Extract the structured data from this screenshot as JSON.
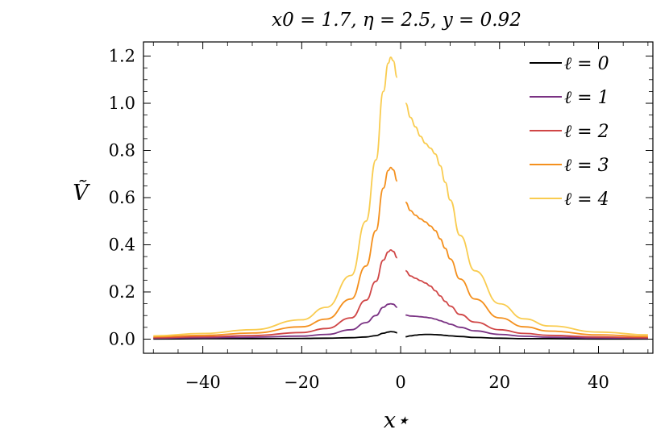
{
  "chart_data": {
    "type": "line",
    "title": "x0 = 1.7, η = 2.5, y = 0.92",
    "xlabel": "x⋆",
    "ylabel": "Ṽ",
    "xlim": [
      -52,
      51
    ],
    "ylim": [
      -0.06,
      1.26
    ],
    "grid": false,
    "legend_position": "top-right",
    "x_ticks": [
      -40,
      -20,
      0,
      20,
      40
    ],
    "x_tick_labels": [
      "−40",
      "−20",
      "0",
      "20",
      "40"
    ],
    "y_ticks": [
      0.0,
      0.2,
      0.4,
      0.6,
      0.8,
      1.0,
      1.2
    ],
    "y_tick_labels": [
      "0.0",
      "0.2",
      "0.4",
      "0.6",
      "0.8",
      "1.0",
      "1.2"
    ],
    "x": [
      -50,
      -40,
      -30,
      -20,
      -15,
      -10,
      -7,
      -5,
      -3.5,
      -2.5,
      -2,
      -1.5,
      -0.7,
      0.6,
      1,
      2,
      3,
      4,
      5,
      6,
      7,
      8,
      9,
      10,
      12,
      15,
      20,
      25,
      30,
      40,
      50
    ],
    "series": [
      {
        "name": "ℓ = 0",
        "color": "#000000",
        "values": [
          0.001,
          0.002,
          0.002,
          0.003,
          0.004,
          0.006,
          0.009,
          0.015,
          0.025,
          0.03,
          0.032,
          0.031,
          0.027,
          null,
          0.01,
          0.014,
          0.017,
          0.019,
          0.02,
          0.02,
          0.019,
          0.018,
          0.016,
          0.014,
          0.011,
          0.007,
          0.004,
          0.002,
          0.002,
          0.001,
          0.001
        ]
      },
      {
        "name": "ℓ = 1",
        "color": "#7a3283",
        "values": [
          0.004,
          0.006,
          0.008,
          0.013,
          0.02,
          0.04,
          0.07,
          0.1,
          0.135,
          0.148,
          0.15,
          0.148,
          0.135,
          null,
          0.102,
          0.098,
          0.097,
          0.095,
          0.093,
          0.09,
          0.085,
          0.078,
          0.071,
          0.063,
          0.05,
          0.035,
          0.02,
          0.012,
          0.008,
          0.005,
          0.004
        ]
      },
      {
        "name": "ℓ = 2",
        "color": "#d04646",
        "values": [
          0.006,
          0.01,
          0.015,
          0.028,
          0.045,
          0.09,
          0.165,
          0.245,
          0.335,
          0.37,
          0.378,
          0.372,
          0.345,
          null,
          0.29,
          0.268,
          0.258,
          0.248,
          0.238,
          0.225,
          0.205,
          0.183,
          0.16,
          0.14,
          0.105,
          0.072,
          0.04,
          0.024,
          0.016,
          0.009,
          0.006
        ]
      },
      {
        "name": "ℓ = 3",
        "color": "#f4901e",
        "values": [
          0.01,
          0.016,
          0.026,
          0.052,
          0.085,
          0.17,
          0.31,
          0.46,
          0.64,
          0.715,
          0.728,
          0.718,
          0.67,
          null,
          0.58,
          0.545,
          0.525,
          0.51,
          0.497,
          0.48,
          0.46,
          0.425,
          0.385,
          0.34,
          0.255,
          0.17,
          0.09,
          0.052,
          0.034,
          0.018,
          0.011
        ]
      },
      {
        "name": "ℓ = 4",
        "color": "#f9cc50",
        "values": [
          0.014,
          0.024,
          0.04,
          0.082,
          0.135,
          0.27,
          0.5,
          0.76,
          1.05,
          1.17,
          1.195,
          1.18,
          1.11,
          null,
          1.0,
          0.94,
          0.9,
          0.86,
          0.83,
          0.81,
          0.785,
          0.735,
          0.665,
          0.59,
          0.44,
          0.29,
          0.15,
          0.086,
          0.056,
          0.03,
          0.018
        ]
      }
    ]
  }
}
